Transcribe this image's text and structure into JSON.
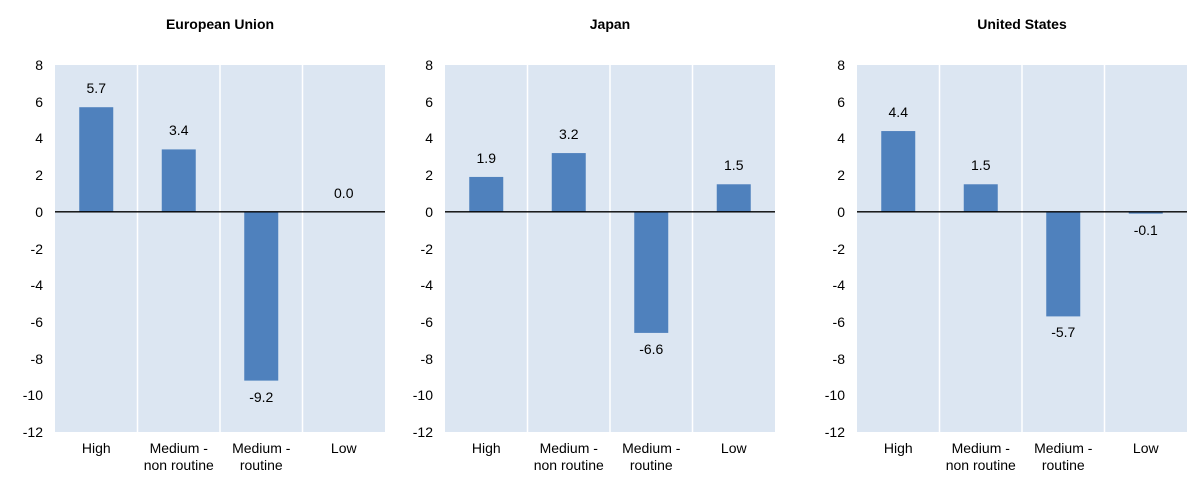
{
  "chart_data": [
    {
      "type": "bar",
      "title": "European Union",
      "categories": [
        "High",
        "Medium -\nnon routine",
        "Medium -\nroutine",
        "Low"
      ],
      "values": [
        5.7,
        3.4,
        -9.2,
        0.0
      ],
      "value_labels": [
        "5.7",
        "3.4",
        "-9.2",
        "0.0"
      ],
      "color": "#4f81bd",
      "ylim": [
        -12,
        8
      ],
      "yticks": [
        -12,
        -10,
        -8,
        -6,
        -4,
        -2,
        0,
        2,
        4,
        6,
        8
      ]
    },
    {
      "type": "bar",
      "title": "Japan",
      "categories": [
        "High",
        "Medium -\nnon routine",
        "Medium -\nroutine",
        "Low"
      ],
      "values": [
        1.9,
        3.2,
        -6.6,
        1.5
      ],
      "value_labels": [
        "1.9",
        "3.2",
        "-6.6",
        "1.5"
      ],
      "color": "#4f81bd",
      "ylim": [
        -12,
        8
      ],
      "yticks": [
        -12,
        -10,
        -8,
        -6,
        -4,
        -2,
        0,
        2,
        4,
        6,
        8
      ]
    },
    {
      "type": "bar",
      "title": "United States",
      "categories": [
        "High",
        "Medium -\nnon routine",
        "Medium -\nroutine",
        "Low"
      ],
      "values": [
        4.4,
        1.5,
        -5.7,
        -0.1
      ],
      "value_labels": [
        "4.4",
        "1.5",
        "-5.7",
        "-0.1"
      ],
      "color": "#4f81bd",
      "ylim": [
        -12,
        8
      ],
      "yticks": [
        -12,
        -10,
        -8,
        -6,
        -4,
        -2,
        0,
        2,
        4,
        6,
        8
      ]
    }
  ]
}
